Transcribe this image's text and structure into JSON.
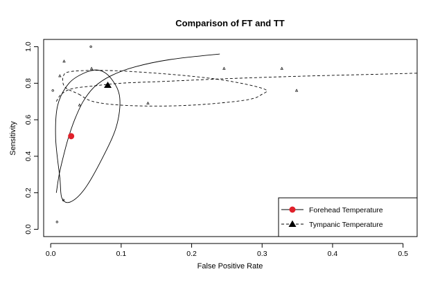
{
  "chart_data": {
    "type": "scatter",
    "title": "Comparison of FT and TT",
    "xlabel": "False Positive Rate",
    "ylabel": "Sensitivity",
    "xlim": [
      -0.01,
      0.52
    ],
    "ylim": [
      -0.04,
      1.04
    ],
    "x_ticks": [
      0.0,
      0.1,
      0.2,
      0.3,
      0.4,
      0.5
    ],
    "x_tick_labels": [
      "0.0",
      "0.1",
      "0.2",
      "0.3",
      "0.4",
      "0.5"
    ],
    "y_ticks": [
      0.0,
      0.2,
      0.4,
      0.6,
      0.8,
      1.0
    ],
    "y_tick_labels": [
      "0.0",
      "0.2",
      "0.4",
      "0.6",
      "0.8",
      "1.0"
    ],
    "grid": false,
    "legend_position": "bottom-right",
    "series": [
      {
        "name": "Forehead Temperature",
        "line_style": "solid",
        "color": "#000000",
        "summary_point": {
          "x": 0.029,
          "y": 0.51,
          "color": "#e0202a",
          "marker": "circle"
        },
        "study_points": [
          {
            "x": 0.003,
            "y": 0.76
          },
          {
            "x": 0.009,
            "y": 0.04
          },
          {
            "x": 0.057,
            "y": 1.0
          },
          {
            "x": 0.018,
            "y": 0.16
          }
        ],
        "sroc_curve": [
          {
            "x": 0.008,
            "y": 0.2
          },
          {
            "x": 0.012,
            "y": 0.3
          },
          {
            "x": 0.018,
            "y": 0.4
          },
          {
            "x": 0.025,
            "y": 0.5
          },
          {
            "x": 0.034,
            "y": 0.6
          },
          {
            "x": 0.046,
            "y": 0.7
          },
          {
            "x": 0.062,
            "y": 0.78
          },
          {
            "x": 0.085,
            "y": 0.84
          },
          {
            "x": 0.12,
            "y": 0.89
          },
          {
            "x": 0.17,
            "y": 0.93
          },
          {
            "x": 0.24,
            "y": 0.96
          }
        ],
        "confidence_region": [
          {
            "x": 0.013,
            "y": 0.28
          },
          {
            "x": 0.007,
            "y": 0.5
          },
          {
            "x": 0.01,
            "y": 0.68
          },
          {
            "x": 0.026,
            "y": 0.8
          },
          {
            "x": 0.05,
            "y": 0.86
          },
          {
            "x": 0.07,
            "y": 0.87
          },
          {
            "x": 0.087,
            "y": 0.82
          },
          {
            "x": 0.098,
            "y": 0.72
          },
          {
            "x": 0.093,
            "y": 0.56
          },
          {
            "x": 0.072,
            "y": 0.38
          },
          {
            "x": 0.048,
            "y": 0.22
          },
          {
            "x": 0.028,
            "y": 0.15
          },
          {
            "x": 0.016,
            "y": 0.17
          }
        ]
      },
      {
        "name": "Tympanic Temperature",
        "line_style": "dashed",
        "color": "#000000",
        "summary_point": {
          "x": 0.081,
          "y": 0.79,
          "color": "#000000",
          "marker": "triangle"
        },
        "study_points": [
          {
            "x": 0.019,
            "y": 0.92
          },
          {
            "x": 0.058,
            "y": 0.88
          },
          {
            "x": 0.013,
            "y": 0.84
          },
          {
            "x": 0.041,
            "y": 0.68
          },
          {
            "x": 0.138,
            "y": 0.69
          },
          {
            "x": 0.246,
            "y": 0.88
          },
          {
            "x": 0.328,
            "y": 0.88
          },
          {
            "x": 0.349,
            "y": 0.76
          }
        ],
        "sroc_curve": [
          {
            "x": 0.008,
            "y": 0.7
          },
          {
            "x": 0.015,
            "y": 0.74
          },
          {
            "x": 0.03,
            "y": 0.77
          },
          {
            "x": 0.06,
            "y": 0.785
          },
          {
            "x": 0.1,
            "y": 0.8
          },
          {
            "x": 0.16,
            "y": 0.81
          },
          {
            "x": 0.25,
            "y": 0.825
          },
          {
            "x": 0.35,
            "y": 0.838
          },
          {
            "x": 0.45,
            "y": 0.848
          },
          {
            "x": 0.52,
            "y": 0.855
          }
        ],
        "confidence_region": [
          {
            "x": 0.04,
            "y": 0.74
          },
          {
            "x": 0.06,
            "y": 0.7
          },
          {
            "x": 0.1,
            "y": 0.68
          },
          {
            "x": 0.16,
            "y": 0.675
          },
          {
            "x": 0.22,
            "y": 0.685
          },
          {
            "x": 0.28,
            "y": 0.71
          },
          {
            "x": 0.3,
            "y": 0.74
          },
          {
            "x": 0.305,
            "y": 0.765
          },
          {
            "x": 0.27,
            "y": 0.8
          },
          {
            "x": 0.22,
            "y": 0.83
          },
          {
            "x": 0.15,
            "y": 0.855
          },
          {
            "x": 0.08,
            "y": 0.87
          },
          {
            "x": 0.03,
            "y": 0.865
          },
          {
            "x": 0.018,
            "y": 0.84
          },
          {
            "x": 0.02,
            "y": 0.78
          }
        ]
      }
    ]
  }
}
